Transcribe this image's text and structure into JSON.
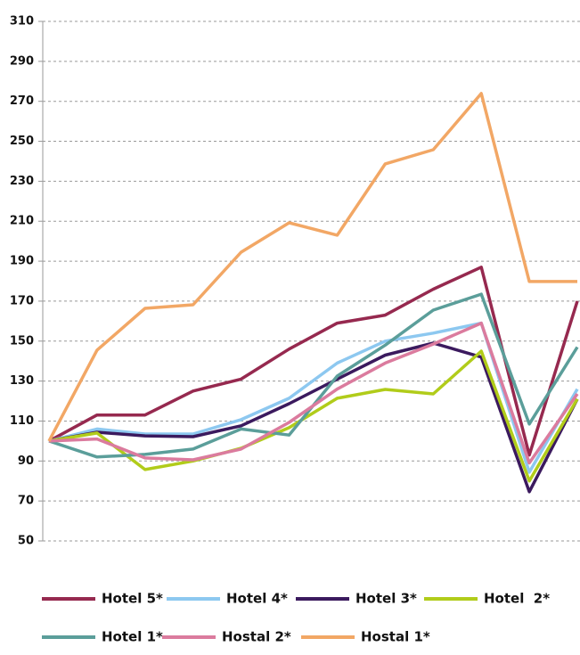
{
  "chart_data": {
    "type": "line",
    "categories": [
      null,
      null,
      null,
      null,
      null,
      null,
      null,
      null,
      null,
      null,
      null,
      null
    ],
    "ylim": [
      50,
      310
    ],
    "yticks": [
      50,
      70,
      90,
      110,
      130,
      150,
      170,
      190,
      210,
      230,
      250,
      270,
      290,
      310
    ],
    "grid": true,
    "legend": "bottom",
    "series": [
      {
        "name": "Hotel 5*",
        "color": "#96294f",
        "values": [
          100,
          113,
          113,
          125,
          131,
          146,
          159,
          163,
          176,
          187,
          93,
          170
        ]
      },
      {
        "name": "Hotel 4*",
        "color": "#8dc8f0",
        "values": [
          100,
          106,
          103.5,
          103.5,
          110.7,
          121.4,
          139,
          150,
          154,
          159,
          84.4,
          126
        ]
      },
      {
        "name": "Hotel 3*",
        "color": "#3b1a5e",
        "values": [
          100,
          104.4,
          102.6,
          102.2,
          107.6,
          118.7,
          131,
          143,
          149,
          142,
          74.6,
          121
        ]
      },
      {
        "name": "Hotel  2*",
        "color": "#b1cc1a",
        "values": [
          100,
          104,
          85.7,
          90,
          96.4,
          106.7,
          121.4,
          125.8,
          123.6,
          145,
          80,
          121
        ]
      },
      {
        "name": "Hotel 1*",
        "color": "#5b9e9a",
        "values": [
          100,
          92,
          93.3,
          96,
          106,
          103,
          132.5,
          148,
          165.5,
          173.5,
          108.5,
          147
        ]
      },
      {
        "name": "Hostal 2*",
        "color": "#db7b9e",
        "values": [
          100,
          101,
          91.5,
          90.6,
          96,
          109.3,
          126,
          139,
          148.5,
          159,
          89,
          123.6
        ]
      },
      {
        "name": "Hostal 1*",
        "color": "#f2a765",
        "values": [
          100,
          145.5,
          166.4,
          168.2,
          194.5,
          209.2,
          203,
          238.7,
          245.8,
          273.9,
          179.8,
          179.8
        ]
      }
    ]
  }
}
